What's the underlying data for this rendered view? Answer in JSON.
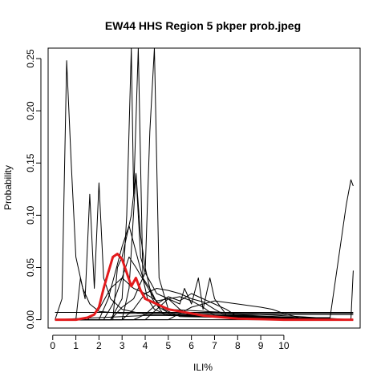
{
  "chart_data": {
    "type": "line",
    "title": "EW44 HHS Region 5 pkper prob.jpeg",
    "xlabel": "ILI%",
    "ylabel": "Probability",
    "xlim": [
      -0.2,
      13.3
    ],
    "ylim": [
      -0.008,
      0.26
    ],
    "x_ticks": [
      0,
      1,
      2,
      3,
      4,
      5,
      6,
      7,
      8,
      9,
      10
    ],
    "x_tick_labels": [
      "0",
      "1",
      "2",
      "3",
      "4",
      "5",
      "6",
      "7",
      "8",
      "9",
      "10"
    ],
    "y_ticks": [
      0.0,
      0.05,
      0.1,
      0.15,
      0.2,
      0.25
    ],
    "y_tick_labels": [
      "0.00",
      "0.05",
      "0.10",
      "0.15",
      "0.20",
      "0.25"
    ],
    "grid": false,
    "legend": "none",
    "series_colors": {
      "individual": "#000000",
      "average": "#e31a1c"
    },
    "series": [
      {
        "color": "#000000",
        "x": [
          0.1,
          0.4,
          0.6,
          0.8,
          1.0,
          1.3,
          1.6,
          2.0,
          3.0,
          6.0,
          10.0,
          13.0
        ],
        "y": [
          0.0,
          0.02,
          0.248,
          0.15,
          0.06,
          0.03,
          0.015,
          0.008,
          0.006,
          0.006,
          0.006,
          0.006
        ]
      },
      {
        "color": "#000000",
        "x": [
          0.1,
          1.0,
          1.2,
          1.4,
          1.6,
          1.8,
          2.0,
          2.2,
          2.5,
          3.0,
          4.0,
          13.0
        ],
        "y": [
          0.0,
          0.0,
          0.04,
          0.02,
          0.12,
          0.03,
          0.131,
          0.04,
          0.02,
          0.01,
          0.005,
          0.005
        ]
      },
      {
        "color": "#000000",
        "x": [
          0.1,
          2.5,
          3.0,
          3.2,
          3.4,
          3.5,
          3.7,
          3.9,
          4.1,
          4.4,
          5.0,
          13.0
        ],
        "y": [
          0.0,
          0.0,
          0.02,
          0.1,
          0.26,
          0.12,
          0.27,
          0.04,
          0.02,
          0.01,
          0.004,
          0.0
        ]
      },
      {
        "color": "#000000",
        "x": [
          0.1,
          3.0,
          3.3,
          3.6,
          3.8,
          4.0,
          4.2,
          4.4,
          4.6,
          5.0,
          13.0
        ],
        "y": [
          0.0,
          0.0,
          0.03,
          0.14,
          0.06,
          0.045,
          0.18,
          0.26,
          0.04,
          0.01,
          0.0
        ]
      },
      {
        "color": "#000000",
        "x": [
          0.1,
          2.6,
          2.8,
          3.0,
          3.2,
          3.4,
          3.6,
          3.8,
          4.0,
          4.3,
          4.8,
          13.0
        ],
        "y": [
          0.0,
          0.0,
          0.05,
          0.06,
          0.08,
          0.1,
          0.14,
          0.08,
          0.05,
          0.02,
          0.005,
          0.0
        ]
      },
      {
        "color": "#000000",
        "x": [
          0.1,
          2.0,
          2.4,
          2.7,
          3.0,
          3.3,
          3.6,
          3.9,
          4.2,
          4.6,
          5.2,
          13.0
        ],
        "y": [
          0.0,
          0.0,
          0.02,
          0.045,
          0.07,
          0.09,
          0.065,
          0.04,
          0.03,
          0.012,
          0.004,
          0.0
        ]
      },
      {
        "color": "#000000",
        "x": [
          0.1,
          2.2,
          2.6,
          3.0,
          3.3,
          3.6,
          4.0,
          4.4,
          4.8,
          5.5,
          13.0
        ],
        "y": [
          0.0,
          0.0,
          0.015,
          0.04,
          0.06,
          0.05,
          0.035,
          0.02,
          0.01,
          0.003,
          0.0
        ]
      },
      {
        "color": "#000000",
        "x": [
          0.1,
          3.0,
          3.5,
          4.0,
          4.5,
          5.0,
          5.5,
          6.0,
          6.5,
          7.0,
          7.5,
          13.0
        ],
        "y": [
          0.0,
          0.0,
          0.01,
          0.025,
          0.03,
          0.028,
          0.025,
          0.02,
          0.017,
          0.01,
          0.004,
          0.0
        ]
      },
      {
        "color": "#000000",
        "x": [
          0.1,
          3.5,
          4.0,
          4.5,
          5.0,
          5.5,
          6.0,
          6.5,
          7.0,
          7.5,
          8.0,
          13.0
        ],
        "y": [
          0.0,
          0.0,
          0.005,
          0.015,
          0.022,
          0.018,
          0.025,
          0.02,
          0.015,
          0.01,
          0.003,
          0.0
        ]
      },
      {
        "color": "#000000",
        "x": [
          0.1,
          4.0,
          4.5,
          5.0,
          5.5,
          5.7,
          6.0,
          6.3,
          6.5,
          6.8,
          7.0,
          7.5,
          13.0
        ],
        "y": [
          0.0,
          0.0,
          0.01,
          0.02,
          0.015,
          0.03,
          0.015,
          0.04,
          0.01,
          0.04,
          0.02,
          0.005,
          0.0
        ]
      },
      {
        "color": "#000000",
        "x": [
          0.1,
          5.0,
          6.0,
          7.0,
          8.0,
          9.0,
          9.5,
          10.0,
          10.5,
          11.0,
          13.0
        ],
        "y": [
          0.0,
          0.0,
          0.012,
          0.018,
          0.015,
          0.012,
          0.01,
          0.006,
          0.003,
          0.0,
          0.0
        ]
      },
      {
        "color": "#000000",
        "x": [
          0.1,
          1.0,
          2.0,
          3.0,
          4.0,
          5.0,
          6.0,
          7.0,
          8.0,
          9.0,
          10.0,
          11.0,
          12.0,
          12.7,
          12.9,
          13.0
        ],
        "y": [
          0.0,
          0.001,
          0.002,
          0.003,
          0.004,
          0.004,
          0.004,
          0.004,
          0.004,
          0.003,
          0.002,
          0.002,
          0.002,
          0.11,
          0.134,
          0.128
        ]
      },
      {
        "color": "#000000",
        "x": [
          0.1,
          6.0,
          11.0,
          12.5,
          12.9,
          13.0
        ],
        "y": [
          0.0,
          0.0,
          0.0,
          0.0,
          0.0,
          0.047
        ]
      },
      {
        "color": "#000000",
        "x": [
          0.1,
          0.5,
          1.0,
          1.5,
          2.0,
          3.0,
          4.0,
          5.0,
          6.0,
          7.0,
          8.0,
          9.0,
          10.0,
          13.0
        ],
        "y": [
          0.007,
          0.007,
          0.007,
          0.007,
          0.007,
          0.007,
          0.007,
          0.007,
          0.007,
          0.007,
          0.007,
          0.007,
          0.007,
          0.007
        ]
      },
      {
        "color": "#000000",
        "x": [
          0.1,
          1.5,
          2.0,
          2.5,
          3.0,
          3.5,
          4.0,
          4.5,
          5.0,
          5.5,
          6.0,
          13.0
        ],
        "y": [
          0.0,
          0.0,
          0.01,
          0.03,
          0.04,
          0.03,
          0.025,
          0.018,
          0.02,
          0.01,
          0.003,
          0.0
        ]
      },
      {
        "color": "#000000",
        "x": [
          0.1,
          2.5,
          3.0,
          3.5,
          4.0,
          4.5,
          5.0,
          5.5,
          6.0,
          6.5,
          7.0,
          13.0
        ],
        "y": [
          0.0,
          0.0,
          0.012,
          0.02,
          0.045,
          0.025,
          0.02,
          0.022,
          0.018,
          0.012,
          0.004,
          0.0
        ]
      }
    ],
    "average": {
      "color": "#e31a1c",
      "x": [
        0.1,
        1.0,
        1.5,
        1.8,
        2.0,
        2.2,
        2.4,
        2.6,
        2.8,
        3.0,
        3.2,
        3.4,
        3.6,
        3.8,
        4.0,
        4.2,
        4.5,
        5.0,
        5.5,
        6.0,
        6.5,
        7.0,
        8.0,
        9.0,
        10.0,
        11.0,
        12.0,
        13.0
      ],
      "y": [
        0.0,
        0.0,
        0.002,
        0.005,
        0.012,
        0.03,
        0.045,
        0.06,
        0.063,
        0.058,
        0.045,
        0.032,
        0.04,
        0.028,
        0.02,
        0.018,
        0.015,
        0.01,
        0.008,
        0.006,
        0.004,
        0.003,
        0.001,
        0.0005,
        0.0,
        0.0,
        0.0,
        0.0
      ]
    }
  }
}
